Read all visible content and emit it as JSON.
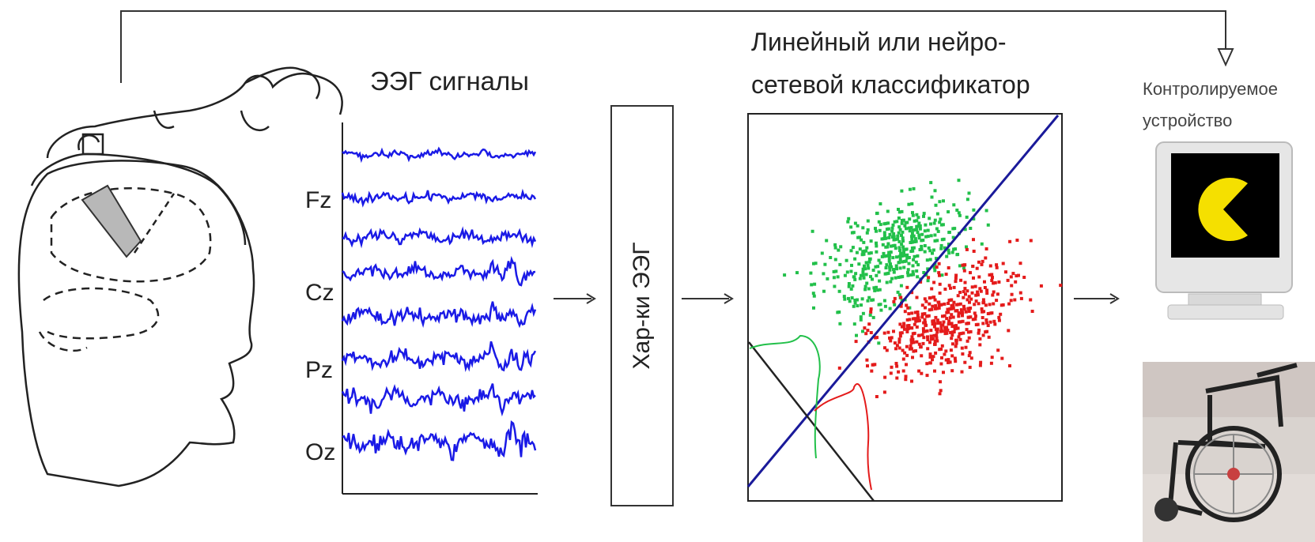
{
  "eeg": {
    "title": "ЭЭГ сигналы",
    "channels": [
      "Fz",
      "Cz",
      "Pz",
      "Oz"
    ],
    "color": "#1a1ae6"
  },
  "features": {
    "label": "Хар-ки ЭЭГ"
  },
  "classifier": {
    "title_line1": "Линейный или нейро-",
    "title_line2": "сетевой классификатор",
    "class_colors": {
      "green": "#22c04a",
      "red": "#e41b1b"
    },
    "boundary_color": "#1a1a9a"
  },
  "device": {
    "label_line1": "Контролируемое",
    "label_line2": "устройство",
    "pacman_color": "#f5e000",
    "screen_color": "#000000"
  }
}
